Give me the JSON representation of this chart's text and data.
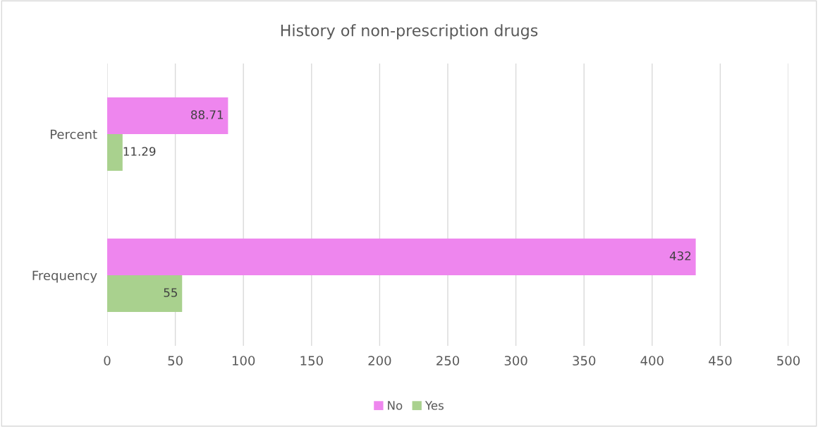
{
  "chart_data": {
    "type": "bar",
    "orientation": "horizontal",
    "title": "History of non-prescription drugs",
    "categories": [
      "Percent",
      "Frequency"
    ],
    "series": [
      {
        "name": "No",
        "color": "#ee86ee",
        "values": [
          88.71,
          432
        ]
      },
      {
        "name": "Yes",
        "color": "#a9d18e",
        "values": [
          11.29,
          55
        ]
      }
    ],
    "xlim": [
      0,
      500
    ],
    "xticks": [
      0,
      50,
      100,
      150,
      200,
      250,
      300,
      350,
      400,
      450,
      500
    ],
    "grid": "x",
    "legend": "bottom",
    "data_labels": true
  }
}
